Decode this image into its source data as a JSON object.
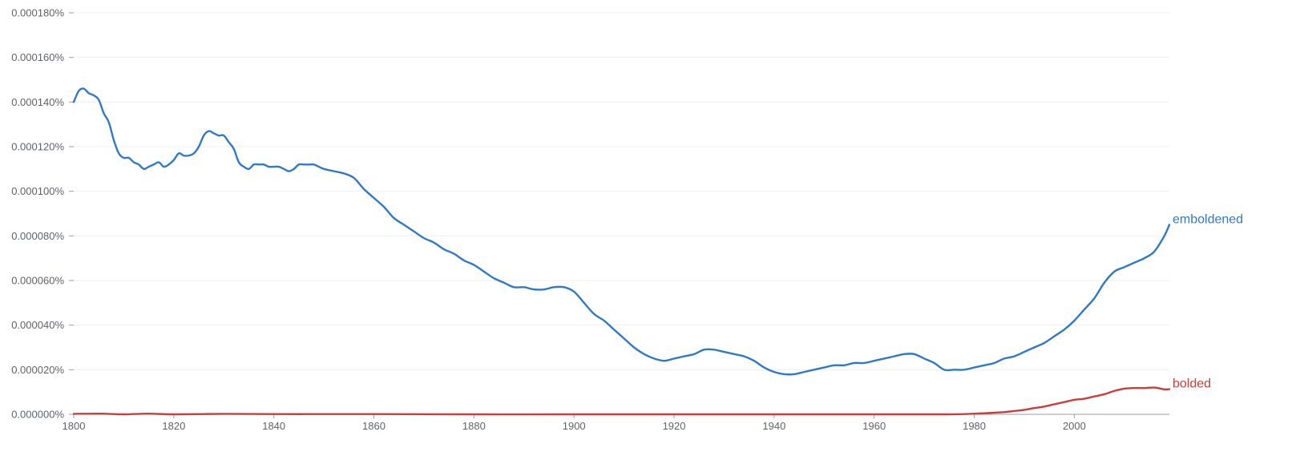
{
  "chart_data": {
    "type": "line",
    "title": "",
    "xlabel": "",
    "ylabel": "",
    "xlim": [
      1800,
      2019
    ],
    "ylim": [
      0,
      0.00018
    ],
    "grid": true,
    "legend": "inline labels at line ends (right)",
    "y_ticks": [
      {
        "value": 0.00018,
        "label": "0.000180%"
      },
      {
        "value": 0.00016,
        "label": "0.000160%"
      },
      {
        "value": 0.00014,
        "label": "0.000140%"
      },
      {
        "value": 0.00012,
        "label": "0.000120%"
      },
      {
        "value": 0.0001,
        "label": "0.000100%"
      },
      {
        "value": 8e-05,
        "label": "0.000080%"
      },
      {
        "value": 6e-05,
        "label": "0.000060%"
      },
      {
        "value": 4e-05,
        "label": "0.000040%"
      },
      {
        "value": 2e-05,
        "label": "0.000020%"
      },
      {
        "value": 0,
        "label": "0.000000%"
      }
    ],
    "x_ticks": [
      {
        "value": 1800,
        "label": "1800"
      },
      {
        "value": 1820,
        "label": "1820"
      },
      {
        "value": 1840,
        "label": "1840"
      },
      {
        "value": 1860,
        "label": "1860"
      },
      {
        "value": 1880,
        "label": "1880"
      },
      {
        "value": 1900,
        "label": "1900"
      },
      {
        "value": 1920,
        "label": "1920"
      },
      {
        "value": 1940,
        "label": "1940"
      },
      {
        "value": 1960,
        "label": "1960"
      },
      {
        "value": 1980,
        "label": "1980"
      },
      {
        "value": 2000,
        "label": "2000"
      }
    ],
    "series": [
      {
        "name": "emboldened",
        "color": "#3079c8",
        "x": [
          1800,
          1801,
          1802,
          1803,
          1804,
          1805,
          1806,
          1807,
          1808,
          1809,
          1810,
          1811,
          1812,
          1813,
          1814,
          1815,
          1816,
          1817,
          1818,
          1819,
          1820,
          1821,
          1822,
          1823,
          1824,
          1825,
          1826,
          1827,
          1828,
          1829,
          1830,
          1831,
          1832,
          1833,
          1834,
          1835,
          1836,
          1837,
          1838,
          1839,
          1840,
          1841,
          1842,
          1843,
          1844,
          1845,
          1846,
          1847,
          1848,
          1849,
          1850,
          1852,
          1854,
          1856,
          1858,
          1860,
          1862,
          1864,
          1866,
          1868,
          1870,
          1872,
          1874,
          1876,
          1878,
          1880,
          1882,
          1884,
          1886,
          1888,
          1890,
          1892,
          1894,
          1896,
          1898,
          1900,
          1902,
          1904,
          1906,
          1908,
          1910,
          1912,
          1914,
          1916,
          1918,
          1920,
          1922,
          1924,
          1926,
          1928,
          1930,
          1932,
          1934,
          1936,
          1938,
          1940,
          1942,
          1944,
          1946,
          1948,
          1950,
          1952,
          1954,
          1956,
          1958,
          1960,
          1962,
          1964,
          1966,
          1968,
          1970,
          1972,
          1974,
          1976,
          1978,
          1980,
          1982,
          1984,
          1986,
          1988,
          1990,
          1992,
          1994,
          1996,
          1998,
          2000,
          2002,
          2004,
          2006,
          2008,
          2010,
          2012,
          2014,
          2016,
          2018,
          2019
        ],
        "values": [
          0.00014,
          0.000145,
          0.000146,
          0.000144,
          0.000143,
          0.000141,
          0.000135,
          0.000131,
          0.000123,
          0.000117,
          0.000115,
          0.000115,
          0.000113,
          0.000112,
          0.00011,
          0.000111,
          0.000112,
          0.000113,
          0.000111,
          0.000112,
          0.000114,
          0.000117,
          0.000116,
          0.000116,
          0.000117,
          0.00012,
          0.000125,
          0.000127,
          0.000126,
          0.000125,
          0.000125,
          0.000122,
          0.000119,
          0.000113,
          0.000111,
          0.00011,
          0.000112,
          0.000112,
          0.000112,
          0.000111,
          0.000111,
          0.000111,
          0.00011,
          0.000109,
          0.00011,
          0.000112,
          0.000112,
          0.000112,
          0.000112,
          0.000111,
          0.00011,
          0.000109,
          0.000108,
          0.000106,
          0.000101,
          9.7e-05,
          9.3e-05,
          8.8e-05,
          8.5e-05,
          8.2e-05,
          7.9e-05,
          7.7e-05,
          7.4e-05,
          7.2e-05,
          6.9e-05,
          6.7e-05,
          6.4e-05,
          6.1e-05,
          5.9e-05,
          5.7e-05,
          5.7e-05,
          5.6e-05,
          5.6e-05,
          5.7e-05,
          5.7e-05,
          5.5e-05,
          5e-05,
          4.5e-05,
          4.2e-05,
          3.8e-05,
          3.4e-05,
          3e-05,
          2.7e-05,
          2.5e-05,
          2.4e-05,
          2.5e-05,
          2.6e-05,
          2.7e-05,
          2.9e-05,
          2.9e-05,
          2.8e-05,
          2.7e-05,
          2.6e-05,
          2.4e-05,
          2.1e-05,
          1.9e-05,
          1.8e-05,
          1.8e-05,
          1.9e-05,
          2e-05,
          2.1e-05,
          2.2e-05,
          2.2e-05,
          2.3e-05,
          2.3e-05,
          2.4e-05,
          2.5e-05,
          2.6e-05,
          2.7e-05,
          2.7e-05,
          2.5e-05,
          2.3e-05,
          2e-05,
          2e-05,
          2e-05,
          2.1e-05,
          2.2e-05,
          2.3e-05,
          2.5e-05,
          2.6e-05,
          2.8e-05,
          3e-05,
          3.2e-05,
          3.5e-05,
          3.8e-05,
          4.2e-05,
          4.7e-05,
          5.2e-05,
          5.9e-05,
          6.4e-05,
          6.6e-05,
          6.8e-05,
          7e-05,
          7.3e-05,
          8e-05,
          8.5e-05
        ]
      },
      {
        "name": "bolded",
        "color": "#cc3c3c",
        "x": [
          1800,
          1805,
          1810,
          1815,
          1820,
          1830,
          1840,
          1850,
          1860,
          1880,
          1900,
          1920,
          1940,
          1960,
          1975,
          1980,
          1983,
          1986,
          1988,
          1990,
          1992,
          1994,
          1996,
          1998,
          2000,
          2002,
          2004,
          2006,
          2008,
          2010,
          2012,
          2014,
          2016,
          2018,
          2019
        ],
        "values": [
          2e-07,
          3e-07,
          0.0,
          3e-07,
          0.0,
          2e-07,
          1e-07,
          1e-07,
          1e-07,
          0.0,
          0.0,
          0.0,
          0.0,
          0.0,
          0.0,
          3e-07,
          6e-07,
          1e-06,
          1.5e-06,
          2e-06,
          2.8e-06,
          3.5e-06,
          4.5e-06,
          5.5e-06,
          6.5e-06,
          7e-06,
          8e-06,
          9e-06,
          1.05e-05,
          1.15e-05,
          1.18e-05,
          1.18e-05,
          1.2e-05,
          1.12e-05,
          1.13e-05
        ]
      }
    ]
  }
}
